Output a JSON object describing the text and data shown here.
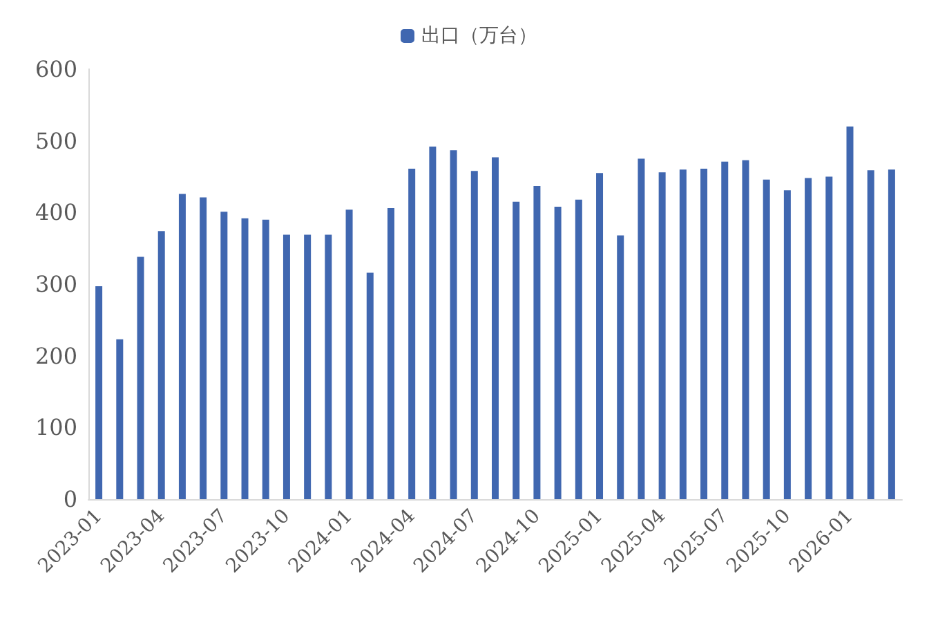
{
  "chart_data": {
    "type": "bar",
    "categories": [
      "2023-01",
      null,
      null,
      "2023-04",
      null,
      null,
      "2023-07",
      null,
      null,
      "2023-10",
      null,
      null,
      "2024-01",
      null,
      null,
      "2024-04",
      null,
      null,
      "2024-07",
      null,
      null,
      "2024-10",
      null,
      null,
      "2025-01",
      null,
      null,
      "2025-04",
      null,
      null,
      "2025-07",
      null,
      null,
      "2025-10",
      null,
      null,
      "2026-01",
      null,
      null
    ],
    "series": [
      {
        "name": "出口（万台）",
        "color": "#4067b0",
        "values": [
          297,
          223,
          338,
          374,
          426,
          421,
          401,
          392,
          390,
          369,
          369,
          369,
          404,
          316,
          406,
          461,
          492,
          487,
          458,
          477,
          415,
          437,
          408,
          418,
          455,
          368,
          475,
          456,
          460,
          461,
          471,
          473,
          446,
          431,
          448,
          450,
          520,
          459,
          460
        ]
      }
    ],
    "ylim": [
      0,
      600
    ],
    "yticks": [
      0,
      100,
      200,
      300,
      400,
      500,
      600
    ],
    "grid": false,
    "legend": "top"
  }
}
